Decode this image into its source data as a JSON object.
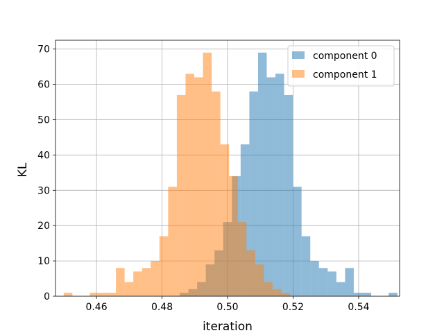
{
  "chart_data": {
    "type": "histogram",
    "title": "",
    "xlabel": "iteration",
    "ylabel": "KL",
    "xlim": [
      0.4475,
      0.5525
    ],
    "ylim": [
      0,
      72.5
    ],
    "xticks": [
      0.46,
      0.48,
      0.5,
      0.52,
      0.54
    ],
    "xtick_labels": [
      "0.46",
      "0.48",
      "0.50",
      "0.52",
      "0.54"
    ],
    "yticks": [
      0,
      10,
      20,
      30,
      40,
      50,
      60,
      70
    ],
    "ytick_labels": [
      "0",
      "10",
      "20",
      "30",
      "40",
      "50",
      "60",
      "70"
    ],
    "grid": true,
    "legend_position": "top-right",
    "series": [
      {
        "name": "component 0",
        "color": "#1f77b4",
        "opacity": 0.5,
        "bin_start": 0.4854,
        "bin_width": 0.002656,
        "counts": [
          1,
          2,
          4,
          9,
          13,
          21,
          34,
          43,
          58,
          69,
          62,
          63,
          57,
          31,
          17,
          10,
          8,
          7,
          4,
          8,
          1,
          1,
          0,
          0,
          1
        ]
      },
      {
        "name": "component 1",
        "color": "#ff7f0e",
        "opacity": 0.5,
        "bin_start": 0.45,
        "bin_width": 0.002656,
        "counts": [
          1,
          0,
          0,
          1,
          1,
          1,
          8,
          4,
          7,
          8,
          10,
          17,
          31,
          57,
          63,
          62,
          69,
          58,
          43,
          34,
          21,
          13,
          9,
          4,
          2,
          1
        ]
      }
    ]
  }
}
